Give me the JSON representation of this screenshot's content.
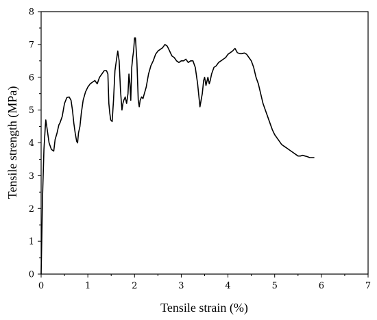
{
  "chart_data": {
    "type": "line",
    "title": "",
    "xlabel": "Tensile strain (%)",
    "ylabel": "Tensile strength (MPa)",
    "xlim": [
      0,
      7
    ],
    "ylim": [
      0,
      8
    ],
    "x_ticks": [
      "0",
      "1",
      "2",
      "3",
      "4",
      "5",
      "6",
      "7"
    ],
    "y_ticks": [
      "0",
      "1",
      "2",
      "3",
      "4",
      "5",
      "6",
      "7",
      "8"
    ],
    "grid": false,
    "legend": "none",
    "line_color": "#000000",
    "series": [
      {
        "x": [
          0,
          0.03,
          0.06,
          0.09,
          0.1,
          0.13,
          0.17,
          0.22,
          0.27,
          0.3,
          0.34,
          0.38,
          0.4,
          0.45,
          0.5,
          0.55,
          0.6,
          0.64,
          0.67,
          0.7,
          0.73,
          0.76,
          0.78,
          0.8,
          0.83,
          0.86,
          0.9,
          0.95,
          1.0,
          1.05,
          1.1,
          1.15,
          1.2,
          1.25,
          1.3,
          1.35,
          1.4,
          1.43,
          1.45,
          1.47,
          1.49,
          1.52,
          1.55,
          1.58,
          1.61,
          1.64,
          1.67,
          1.7,
          1.73,
          1.75,
          1.77,
          1.8,
          1.83,
          1.86,
          1.88,
          1.9,
          1.92,
          1.94,
          1.96,
          1.98,
          2.0,
          2.02,
          2.05,
          2.08,
          2.1,
          2.12,
          2.15,
          2.18,
          2.2,
          2.25,
          2.3,
          2.35,
          2.4,
          2.45,
          2.5,
          2.55,
          2.6,
          2.65,
          2.7,
          2.75,
          2.8,
          2.85,
          2.9,
          2.95,
          3.0,
          3.05,
          3.1,
          3.15,
          3.2,
          3.25,
          3.3,
          3.35,
          3.4,
          3.45,
          3.48,
          3.5,
          3.53,
          3.57,
          3.6,
          3.62,
          3.65,
          3.7,
          3.75,
          3.8,
          3.85,
          3.9,
          3.95,
          4.0,
          4.05,
          4.1,
          4.15,
          4.2,
          4.25,
          4.3,
          4.35,
          4.4,
          4.45,
          4.5,
          4.55,
          4.6,
          4.65,
          4.7,
          4.75,
          4.8,
          4.85,
          4.9,
          4.95,
          5.0,
          5.05,
          5.1,
          5.15,
          5.2,
          5.25,
          5.3,
          5.35,
          5.4,
          5.45,
          5.5,
          5.55,
          5.6,
          5.65,
          5.7,
          5.75,
          5.8,
          5.85
        ],
        "y": [
          0,
          2.3,
          3.8,
          4.5,
          4.7,
          4.4,
          4.0,
          3.8,
          3.75,
          4.1,
          4.3,
          4.55,
          4.6,
          4.8,
          5.2,
          5.38,
          5.4,
          5.3,
          5.0,
          4.6,
          4.3,
          4.05,
          4.0,
          4.3,
          4.5,
          4.9,
          5.3,
          5.55,
          5.7,
          5.8,
          5.85,
          5.9,
          5.8,
          6.0,
          6.1,
          6.2,
          6.2,
          6.1,
          5.2,
          4.9,
          4.7,
          4.65,
          5.3,
          6.2,
          6.5,
          6.8,
          6.5,
          5.6,
          5.0,
          5.2,
          5.3,
          5.4,
          5.2,
          5.5,
          6.1,
          5.8,
          5.3,
          6.3,
          6.6,
          6.8,
          7.2,
          7.2,
          6.5,
          5.3,
          5.1,
          5.3,
          5.4,
          5.35,
          5.45,
          5.7,
          6.1,
          6.35,
          6.5,
          6.7,
          6.8,
          6.85,
          6.9,
          7.0,
          6.95,
          6.8,
          6.65,
          6.6,
          6.5,
          6.45,
          6.5,
          6.5,
          6.55,
          6.45,
          6.5,
          6.5,
          6.3,
          5.8,
          5.1,
          5.5,
          5.9,
          6.0,
          5.75,
          6.0,
          5.8,
          5.9,
          6.1,
          6.3,
          6.35,
          6.45,
          6.5,
          6.55,
          6.6,
          6.7,
          6.75,
          6.8,
          6.88,
          6.75,
          6.72,
          6.72,
          6.74,
          6.7,
          6.6,
          6.5,
          6.3,
          6.0,
          5.8,
          5.5,
          5.2,
          5.0,
          4.8,
          4.6,
          4.4,
          4.25,
          4.15,
          4.05,
          3.95,
          3.9,
          3.85,
          3.8,
          3.75,
          3.7,
          3.65,
          3.6,
          3.6,
          3.62,
          3.6,
          3.58,
          3.55,
          3.55,
          3.55
        ]
      }
    ]
  }
}
